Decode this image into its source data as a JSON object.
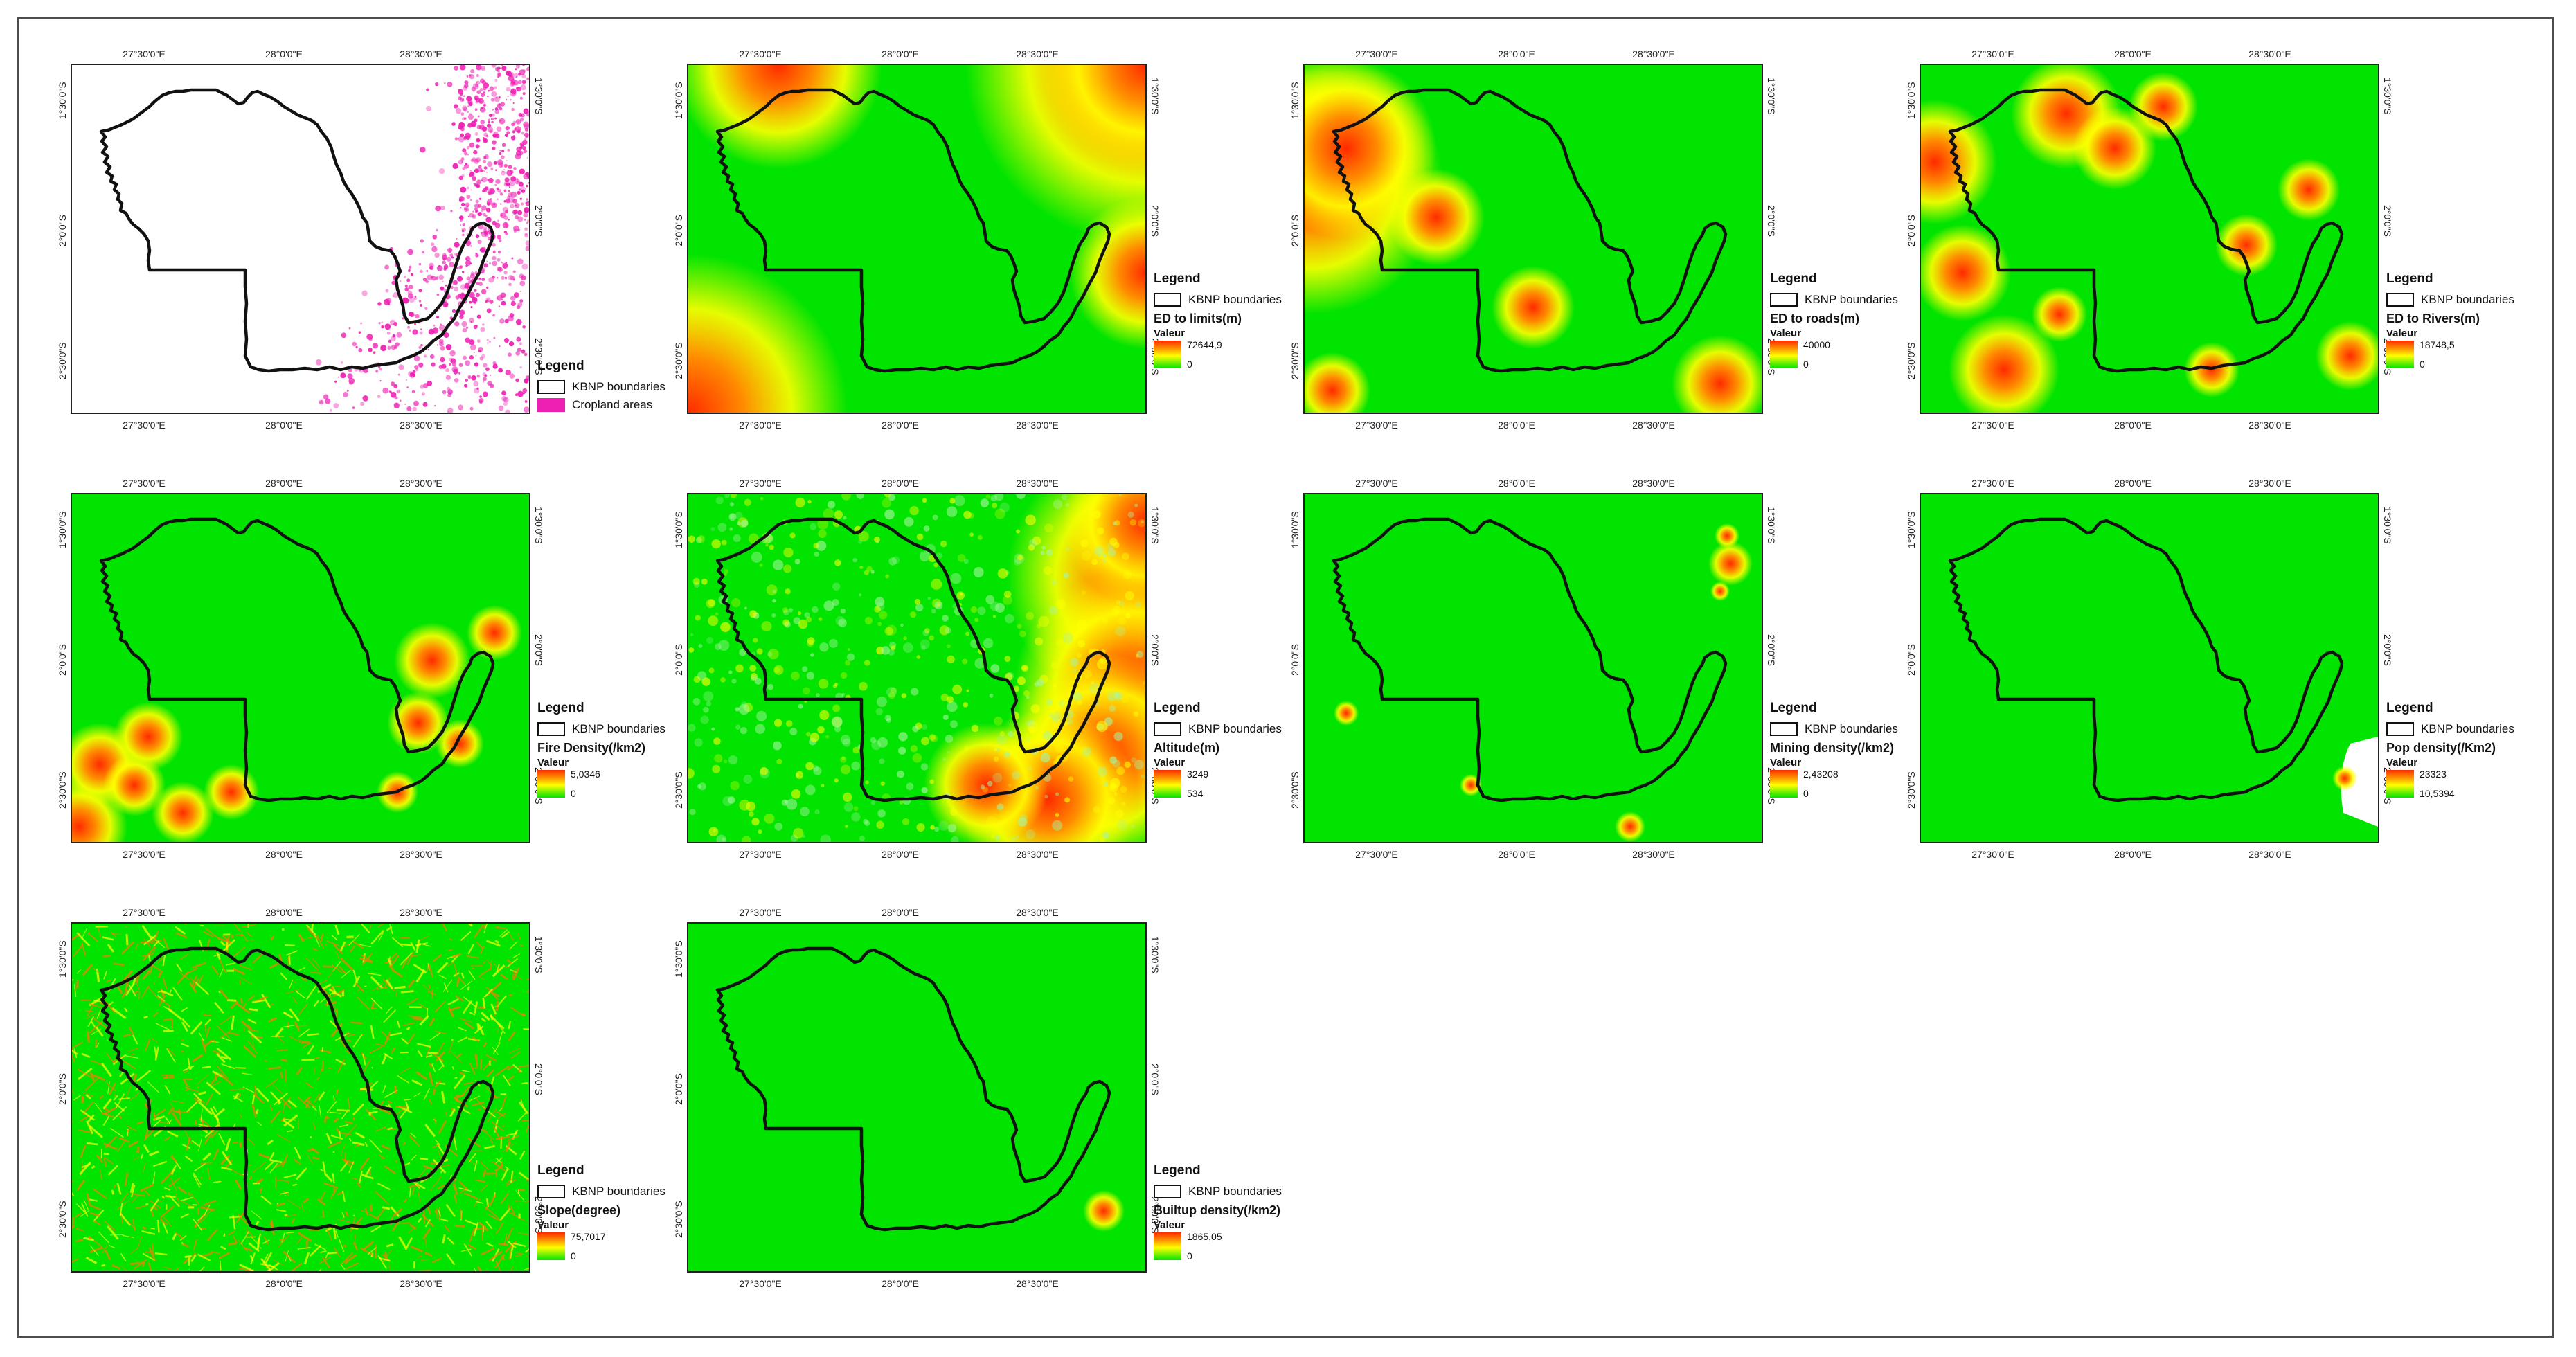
{
  "ticks": {
    "x": [
      "27°30'0\"E",
      "28°0'0\"E",
      "28°30'0\"E"
    ],
    "y": [
      "1°30'0\"S",
      "2°0'0\"S",
      "2°30'0\"S"
    ]
  },
  "legend_common": {
    "title": "Legend",
    "boundary_label": "KBNP boundaries",
    "valeur_label": "Valeur"
  },
  "maps": [
    {
      "id": "cropland",
      "type": "binary",
      "class_label": "Cropland areas",
      "class_color": "#ee1fb3"
    },
    {
      "id": "ed-limits",
      "type": "continuous",
      "layer": "ED to limits(m)",
      "max": "72644,9",
      "min": "0"
    },
    {
      "id": "ed-roads",
      "type": "continuous",
      "layer": "ED to roads(m)",
      "max": "40000",
      "min": "0"
    },
    {
      "id": "ed-rivers",
      "type": "continuous",
      "layer": "ED to Rivers(m)",
      "max": "18748,5",
      "min": "0"
    },
    {
      "id": "fire-density",
      "type": "continuous",
      "layer": "Fire Density(/km2)",
      "max": "5,0346",
      "min": "0"
    },
    {
      "id": "altitude",
      "type": "continuous",
      "layer": "Altitude(m)",
      "max": "3249",
      "min": "534"
    },
    {
      "id": "mining-density",
      "type": "continuous",
      "layer": "Mining density(/km2)",
      "max": "2,43208",
      "min": "0"
    },
    {
      "id": "pop-density",
      "type": "continuous",
      "layer": "Pop density(/Km2)",
      "max": "23323",
      "min": "10,5394"
    },
    {
      "id": "slope",
      "type": "continuous",
      "layer": "Slope(degree)",
      "max": "75,7017",
      "min": "0"
    },
    {
      "id": "builtup-density",
      "type": "continuous",
      "layer": "Builtup density(/km2)",
      "max": "1865,05",
      "min": "0"
    }
  ],
  "colors": {
    "low": "#00e400",
    "mid": "#ffff00",
    "high": "#ff2a00",
    "boundary": "#111111",
    "cropland": "#ee1fb3",
    "frame": "#4d4d4d"
  }
}
